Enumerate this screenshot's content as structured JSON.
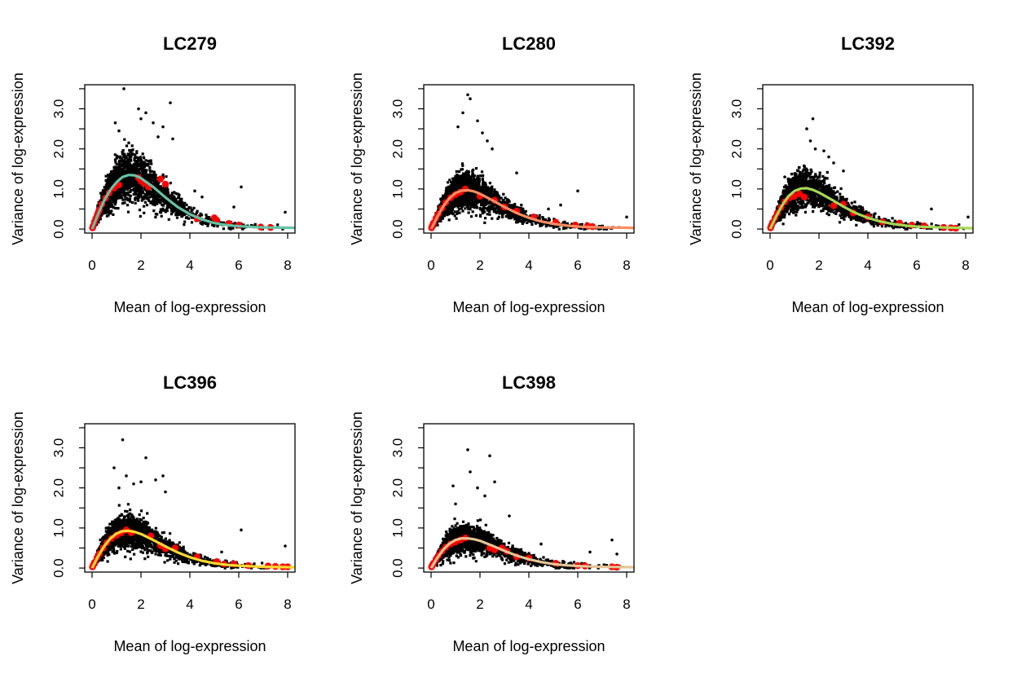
{
  "figure": {
    "background": "#ffffff"
  },
  "chart_data": [
    {
      "type": "scatter",
      "title": "LC279",
      "xlabel": "Mean of log-expression",
      "ylabel": "Variance of log-expression",
      "xlim": [
        -0.3,
        8.3
      ],
      "ylim": [
        -0.1,
        3.6
      ],
      "xticks": [
        "0",
        "2",
        "4",
        "6",
        "8"
      ],
      "yticks": [
        "0.0",
        "1.0",
        "2.0",
        "3.0"
      ],
      "trend_color": "#66C2A5",
      "spike_color": "#FF0000",
      "point_color": "#000000",
      "series": [
        {
          "name": "",
          "kind": "trend",
          "x": [
            0,
            0.25,
            0.5,
            0.75,
            1.0,
            1.25,
            1.5,
            1.75,
            2.0,
            2.5,
            3.0,
            3.5,
            4.0,
            4.5,
            5.0,
            5.5,
            6.0,
            7.0,
            8.3
          ],
          "y": [
            0.0,
            0.38,
            0.72,
            0.98,
            1.17,
            1.3,
            1.35,
            1.34,
            1.27,
            1.05,
            0.79,
            0.55,
            0.37,
            0.24,
            0.15,
            0.1,
            0.07,
            0.04,
            0.03
          ]
        },
        {
          "name": "",
          "kind": "spike-in",
          "x": [
            0.02,
            0.05,
            0.1,
            0.15,
            0.2,
            0.25,
            0.3,
            0.4,
            0.55,
            0.7,
            0.9,
            1.1,
            1.9,
            2.0,
            2.1,
            2.3,
            2.8,
            3.0,
            4.3,
            5.0,
            5.1,
            5.6,
            6.0,
            6.9,
            7.3
          ],
          "y": [
            0.03,
            0.08,
            0.18,
            0.26,
            0.33,
            0.41,
            0.48,
            0.62,
            0.77,
            0.9,
            1.02,
            1.1,
            1.28,
            1.2,
            1.15,
            1.05,
            1.25,
            1.12,
            0.26,
            0.28,
            0.22,
            0.14,
            0.1,
            0.05,
            0.04
          ]
        },
        {
          "name": "",
          "kind": "outliers",
          "x": [
            1.3,
            0.95,
            1.1,
            1.9,
            2.2,
            2.5,
            3.2,
            2.7,
            3.3,
            1.5,
            2.9,
            2.0,
            6.1,
            5.8,
            7.9,
            4.5,
            4.2
          ],
          "y": [
            3.5,
            2.65,
            2.45,
            3.0,
            2.9,
            2.65,
            3.15,
            2.3,
            2.25,
            2.15,
            2.55,
            2.75,
            1.05,
            0.55,
            0.42,
            0.8,
            0.95
          ]
        }
      ]
    },
    {
      "type": "scatter",
      "title": "LC280",
      "xlabel": "Mean of log-expression",
      "ylabel": "Variance of log-expression",
      "xlim": [
        -0.3,
        8.3
      ],
      "ylim": [
        -0.1,
        3.6
      ],
      "xticks": [
        "0",
        "2",
        "4",
        "6",
        "8"
      ],
      "yticks": [
        "0.0",
        "1.0",
        "2.0",
        "3.0"
      ],
      "trend_color": "#FC8D62",
      "spike_color": "#FF0000",
      "point_color": "#000000",
      "series": [
        {
          "name": "",
          "kind": "trend",
          "x": [
            0,
            0.25,
            0.5,
            0.75,
            1.0,
            1.25,
            1.5,
            1.75,
            2.0,
            2.5,
            3.0,
            3.5,
            4.0,
            4.5,
            5.0,
            5.5,
            6.0,
            7.0,
            8.3
          ],
          "y": [
            0.0,
            0.3,
            0.57,
            0.77,
            0.9,
            0.96,
            0.97,
            0.94,
            0.88,
            0.72,
            0.55,
            0.4,
            0.28,
            0.19,
            0.13,
            0.09,
            0.06,
            0.04,
            0.03
          ]
        },
        {
          "name": "",
          "kind": "spike-in",
          "x": [
            0.02,
            0.05,
            0.1,
            0.2,
            0.3,
            0.45,
            0.6,
            0.8,
            1.0,
            1.2,
            1.4,
            2.0,
            2.6,
            3.0,
            3.5,
            4.2,
            5.1,
            5.9,
            6.4,
            6.6
          ],
          "y": [
            0.03,
            0.08,
            0.15,
            0.27,
            0.38,
            0.52,
            0.66,
            0.78,
            0.86,
            0.92,
            1.0,
            0.82,
            0.72,
            0.55,
            0.45,
            0.3,
            0.17,
            0.1,
            0.08,
            0.06
          ]
        },
        {
          "name": "",
          "kind": "outliers",
          "x": [
            1.5,
            1.6,
            1.1,
            1.3,
            2.1,
            2.3,
            1.9,
            2.5,
            6.0,
            3.5,
            5.3,
            8.0,
            4.8
          ],
          "y": [
            3.35,
            3.25,
            2.55,
            2.9,
            2.4,
            2.2,
            2.7,
            2.0,
            0.95,
            1.4,
            0.6,
            0.3,
            0.5
          ]
        }
      ]
    },
    {
      "type": "scatter",
      "title": "LC392",
      "xlabel": "Mean of log-expression",
      "ylabel": "Variance of log-expression",
      "xlim": [
        -0.3,
        8.3
      ],
      "ylim": [
        -0.1,
        3.6
      ],
      "xticks": [
        "0",
        "2",
        "4",
        "6",
        "8"
      ],
      "yticks": [
        "0.0",
        "1.0",
        "2.0",
        "3.0"
      ],
      "trend_color": "#A6D854",
      "spike_color": "#FF0000",
      "point_color": "#000000",
      "series": [
        {
          "name": "",
          "kind": "trend",
          "x": [
            0,
            0.25,
            0.5,
            0.75,
            1.0,
            1.25,
            1.5,
            1.75,
            2.0,
            2.5,
            3.0,
            3.5,
            4.0,
            4.5,
            5.0,
            5.5,
            6.0,
            7.0,
            8.3
          ],
          "y": [
            0.0,
            0.32,
            0.6,
            0.82,
            0.95,
            1.01,
            1.02,
            0.98,
            0.91,
            0.74,
            0.56,
            0.4,
            0.28,
            0.19,
            0.13,
            0.09,
            0.06,
            0.04,
            0.02
          ]
        },
        {
          "name": "",
          "kind": "spike-in",
          "x": [
            0.02,
            0.05,
            0.1,
            0.2,
            0.3,
            0.45,
            0.6,
            0.8,
            1.0,
            1.2,
            1.4,
            2.6,
            3.0,
            3.4,
            4.0,
            4.6,
            5.3,
            5.8,
            6.3,
            7.1,
            7.4,
            7.6
          ],
          "y": [
            0.03,
            0.08,
            0.16,
            0.28,
            0.4,
            0.54,
            0.68,
            0.78,
            0.82,
            0.88,
            0.8,
            0.58,
            0.62,
            0.4,
            0.3,
            0.18,
            0.15,
            0.1,
            0.08,
            0.04,
            0.03,
            0.02
          ]
        },
        {
          "name": "",
          "kind": "outliers",
          "x": [
            1.75,
            0.6,
            1.5,
            1.65,
            1.85,
            2.2,
            2.4,
            3.0,
            2.6,
            6.6,
            8.1
          ],
          "y": [
            2.75,
            1.3,
            2.5,
            2.2,
            2.0,
            1.95,
            1.8,
            1.45,
            1.65,
            0.5,
            0.3
          ]
        }
      ]
    },
    {
      "type": "scatter",
      "title": "LC396",
      "xlabel": "Mean of log-expression",
      "ylabel": "Variance of log-expression",
      "xlim": [
        -0.3,
        8.3
      ],
      "ylim": [
        -0.1,
        3.6
      ],
      "xticks": [
        "0",
        "2",
        "4",
        "6",
        "8"
      ],
      "yticks": [
        "0.0",
        "1.0",
        "2.0",
        "3.0"
      ],
      "trend_color": "#FFD92F",
      "spike_color": "#FF0000",
      "point_color": "#000000",
      "series": [
        {
          "name": "",
          "kind": "trend",
          "x": [
            0,
            0.25,
            0.5,
            0.75,
            1.0,
            1.25,
            1.5,
            1.75,
            2.0,
            2.5,
            3.0,
            3.5,
            4.0,
            4.5,
            5.0,
            5.5,
            6.0,
            7.0,
            8.3
          ],
          "y": [
            0.0,
            0.3,
            0.55,
            0.74,
            0.86,
            0.92,
            0.93,
            0.9,
            0.85,
            0.7,
            0.54,
            0.39,
            0.27,
            0.18,
            0.12,
            0.08,
            0.06,
            0.03,
            0.02
          ]
        },
        {
          "name": "",
          "kind": "spike-in",
          "x": [
            0.02,
            0.05,
            0.1,
            0.2,
            0.3,
            0.45,
            0.6,
            0.8,
            1.0,
            1.2,
            1.4,
            1.6,
            2.4,
            2.8,
            3.0,
            3.4,
            4.3,
            5.1,
            5.4,
            5.8,
            6.4,
            7.2,
            7.5,
            7.8,
            8.0
          ],
          "y": [
            0.03,
            0.07,
            0.14,
            0.26,
            0.36,
            0.5,
            0.63,
            0.74,
            0.82,
            0.88,
            0.95,
            0.88,
            0.8,
            0.56,
            0.48,
            0.5,
            0.28,
            0.16,
            0.1,
            0.1,
            0.06,
            0.05,
            0.04,
            0.03,
            0.03
          ]
        },
        {
          "name": "",
          "kind": "outliers",
          "x": [
            1.25,
            0.9,
            2.2,
            1.4,
            1.7,
            2.0,
            2.6,
            2.9,
            3.0,
            6.1,
            7.9,
            1.1,
            5.3
          ],
          "y": [
            3.2,
            2.5,
            2.75,
            2.3,
            2.1,
            2.15,
            2.2,
            2.3,
            1.9,
            0.95,
            0.55,
            2.0,
            0.4
          ]
        }
      ]
    },
    {
      "type": "scatter",
      "title": "LC398",
      "xlabel": "Mean of log-expression",
      "ylabel": "Variance of log-expression",
      "xlim": [
        -0.3,
        8.3
      ],
      "ylim": [
        -0.1,
        3.6
      ],
      "xticks": [
        "0",
        "2",
        "4",
        "6",
        "8"
      ],
      "yticks": [
        "0.0",
        "1.0",
        "2.0",
        "3.0"
      ],
      "trend_color": "#E5C494",
      "spike_color": "#FF0000",
      "point_color": "#000000",
      "series": [
        {
          "name": "",
          "kind": "trend",
          "x": [
            0,
            0.25,
            0.5,
            0.75,
            1.0,
            1.25,
            1.5,
            1.75,
            2.0,
            2.5,
            3.0,
            3.5,
            4.0,
            4.5,
            5.0,
            5.5,
            6.0,
            7.0,
            8.3
          ],
          "y": [
            0.0,
            0.25,
            0.46,
            0.61,
            0.7,
            0.74,
            0.74,
            0.72,
            0.68,
            0.56,
            0.43,
            0.31,
            0.22,
            0.15,
            0.1,
            0.07,
            0.05,
            0.03,
            0.02
          ]
        },
        {
          "name": "",
          "kind": "spike-in",
          "x": [
            0.02,
            0.05,
            0.1,
            0.2,
            0.3,
            0.45,
            0.6,
            0.8,
            1.0,
            1.2,
            1.4,
            2.4,
            2.6,
            2.9,
            3.1,
            3.5,
            4.0,
            5.1,
            6.0,
            6.3,
            7.4,
            7.6
          ],
          "y": [
            0.03,
            0.07,
            0.12,
            0.22,
            0.31,
            0.42,
            0.52,
            0.6,
            0.65,
            0.7,
            0.75,
            0.5,
            0.45,
            0.5,
            0.42,
            0.28,
            0.25,
            0.12,
            0.06,
            0.05,
            0.03,
            0.02
          ]
        },
        {
          "name": "",
          "kind": "outliers",
          "x": [
            1.5,
            1.6,
            2.4,
            0.9,
            1.0,
            1.9,
            2.6,
            2.2,
            3.2,
            7.4,
            7.6,
            6.5,
            4.5
          ],
          "y": [
            2.95,
            2.4,
            2.8,
            2.05,
            1.6,
            2.0,
            2.15,
            1.8,
            1.3,
            0.7,
            0.35,
            0.4,
            0.6
          ]
        }
      ]
    }
  ]
}
